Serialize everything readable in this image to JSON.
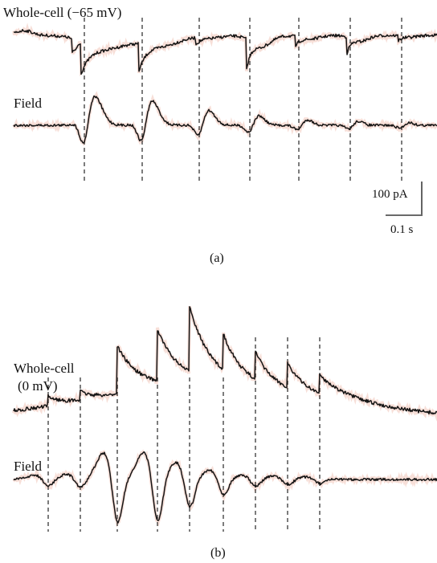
{
  "panel_a": {
    "trace_top_label": "Whole-cell (−65 mV)",
    "trace_bottom_label": "Field",
    "scale_current": "100 pA",
    "scale_time": "0.1 s",
    "panel_label": "(a)"
  },
  "panel_b": {
    "trace_top_label_line1": "Whole-cell",
    "trace_top_label_line2": "(0 mV)",
    "trace_bottom_label": "Field",
    "panel_label": "(b)"
  },
  "colors": {
    "trace": "#151515",
    "trace_halo": "#e8a28f",
    "dashes": "#111111"
  }
}
